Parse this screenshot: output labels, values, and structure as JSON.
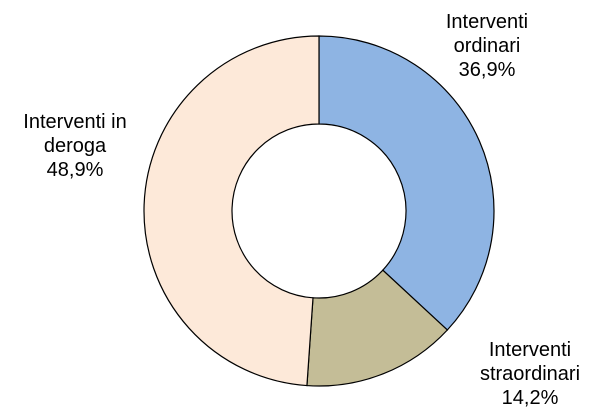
{
  "chart_data": {
    "type": "pie",
    "title": "",
    "slices": [
      {
        "label_lines": [
          "Interventi",
          "ordinari"
        ],
        "value": 36.9,
        "value_text": "36,9%",
        "color": "#8eb4e3"
      },
      {
        "label_lines": [
          "Interventi",
          "straordinari"
        ],
        "value": 14.2,
        "value_text": "14,2%",
        "color": "#c4bd97"
      },
      {
        "label_lines": [
          "Interventi in",
          "deroga"
        ],
        "value": 48.9,
        "value_text": "48,9%",
        "color": "#fde9d9"
      }
    ],
    "donut": true,
    "stroke_color": "#000000"
  }
}
